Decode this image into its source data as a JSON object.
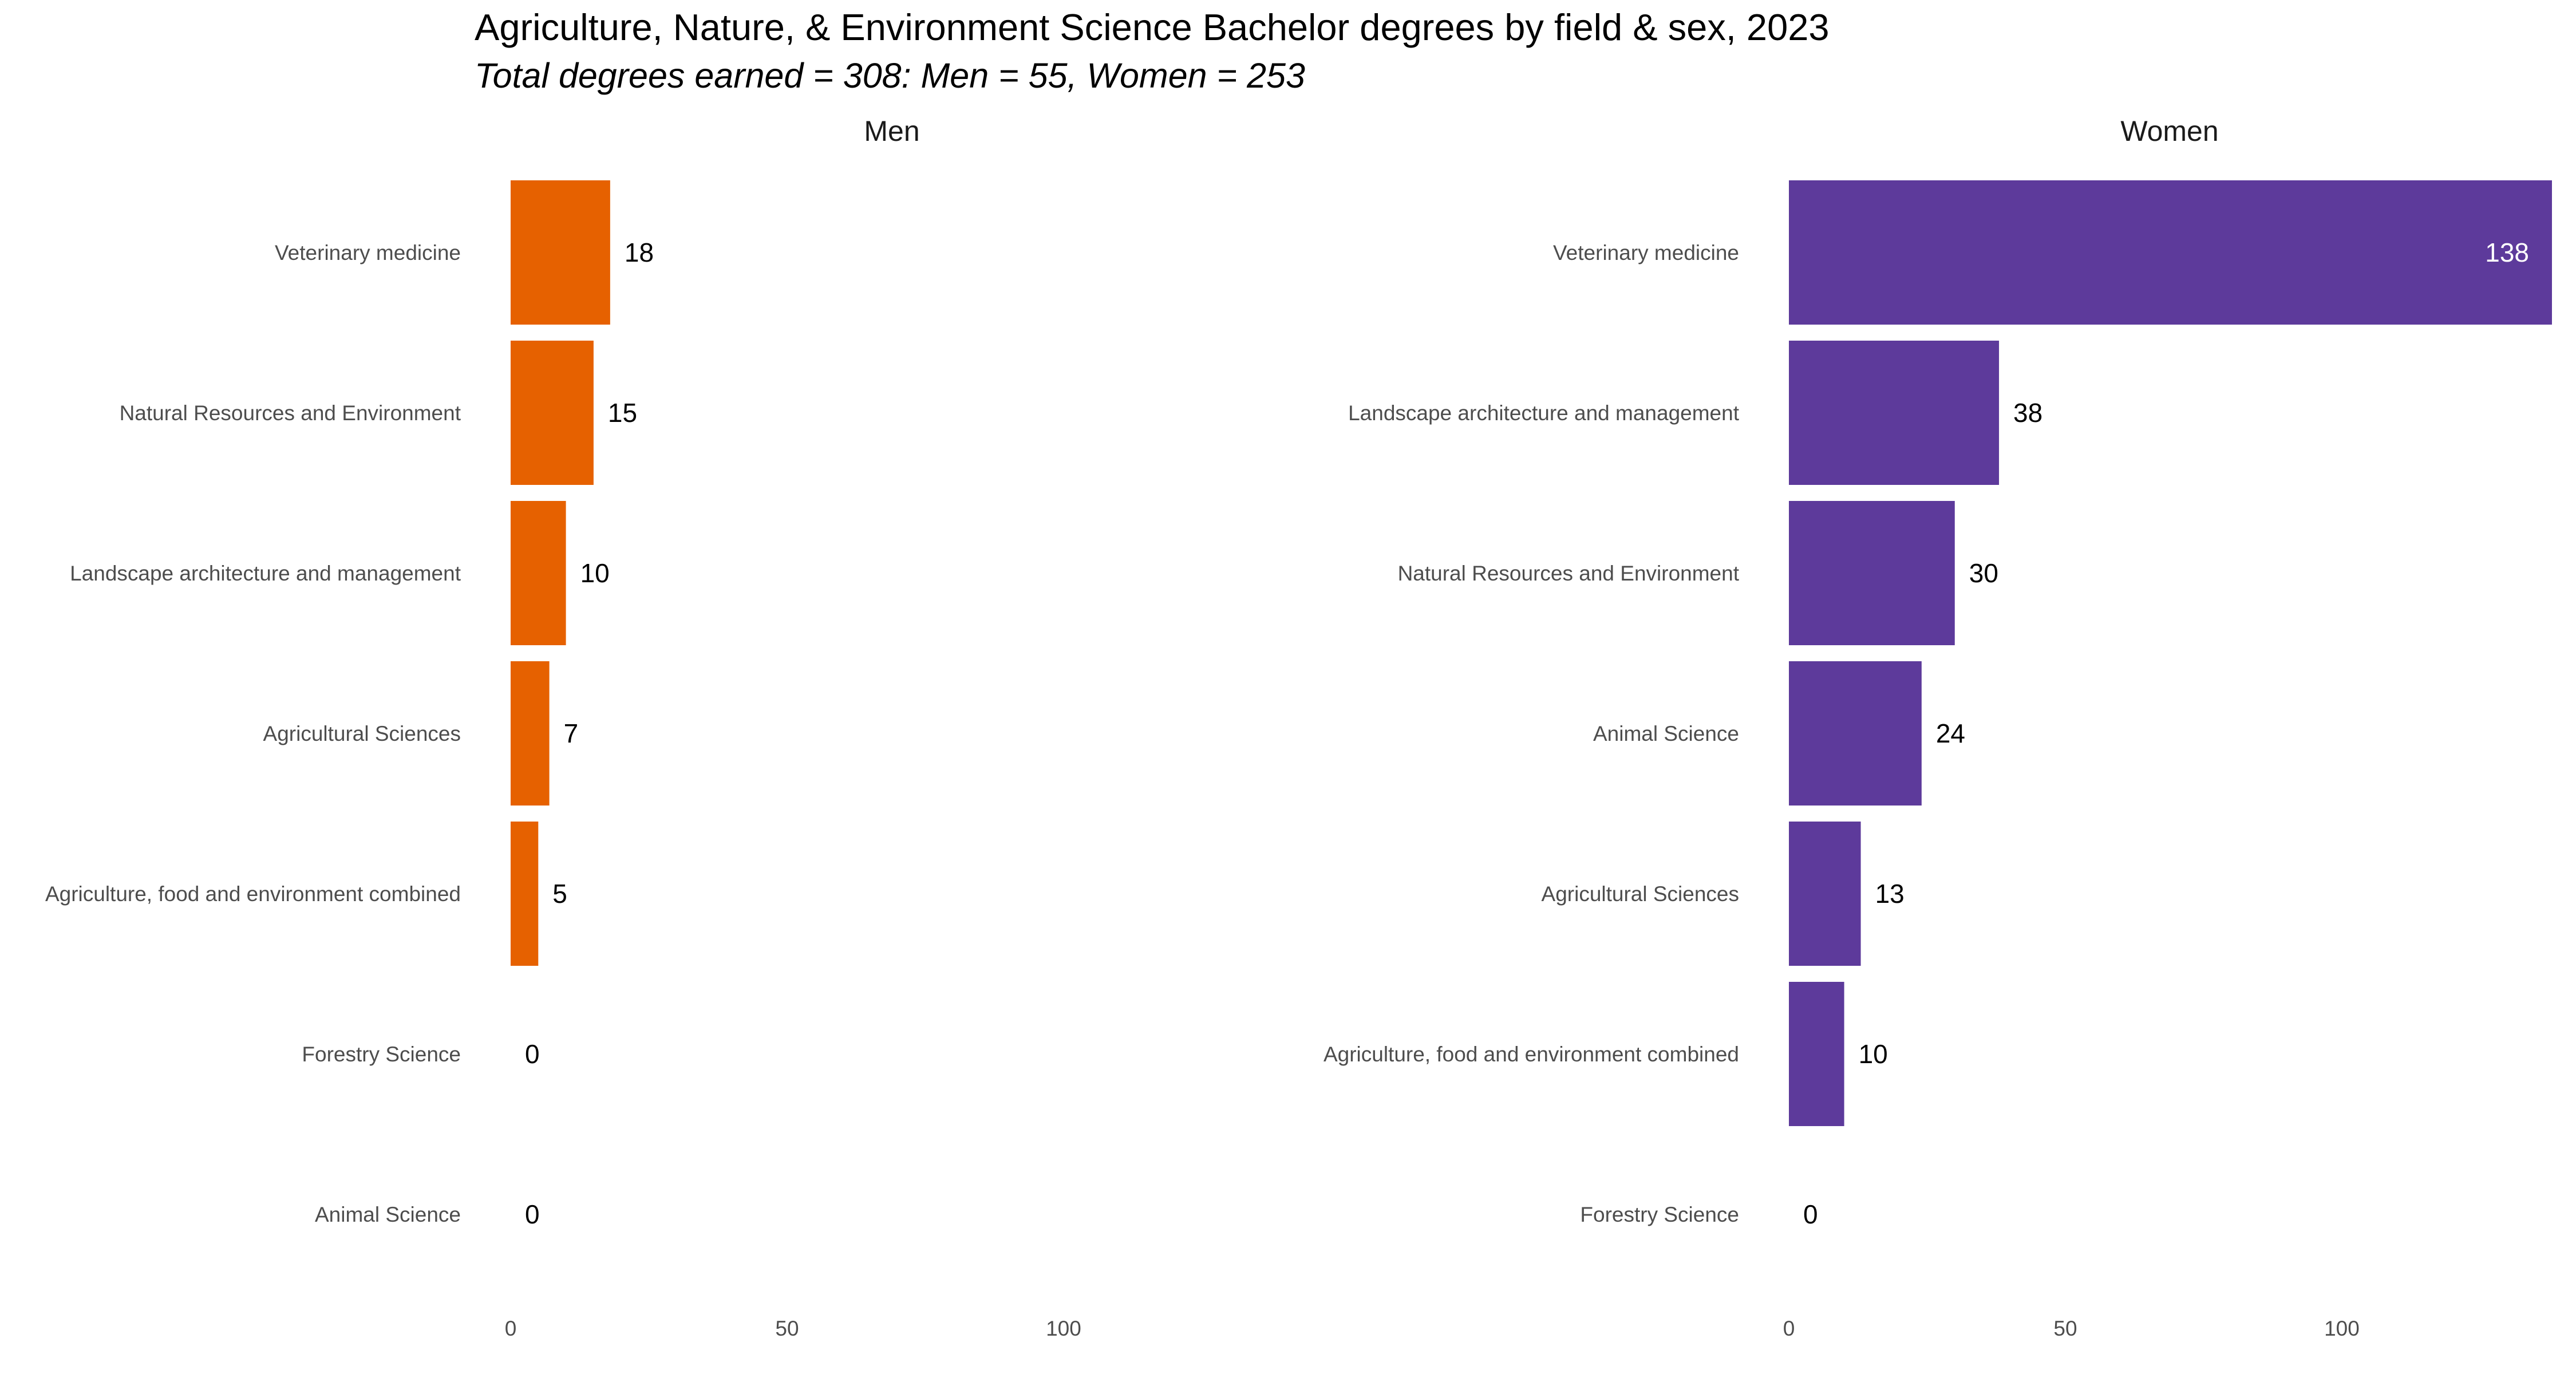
{
  "chart_data": {
    "type": "bar",
    "orientation": "horizontal",
    "title": "Agriculture, Nature, & Environment Science Bachelor degrees by field & sex, 2023",
    "subtitle": "Total degrees earned = 308: Men = 55, Women = 253",
    "grid": false,
    "legend": "none",
    "xlim": [
      0,
      138
    ],
    "x_ticks": [
      0,
      50,
      100
    ],
    "panels": [
      {
        "name": "Men",
        "color": "#E66100",
        "categories": [
          "Veterinary medicine",
          "Natural Resources and Environment",
          "Landscape architecture and management",
          "Agricultural Sciences",
          "Agriculture, food and environment combined",
          "Forestry Science",
          "Animal Science"
        ],
        "values": [
          18,
          15,
          10,
          7,
          5,
          0,
          0
        ]
      },
      {
        "name": "Women",
        "color": "#5D3A9B",
        "categories": [
          "Veterinary medicine",
          "Landscape architecture and management",
          "Natural Resources and Environment",
          "Animal Science",
          "Agricultural Sciences",
          "Agriculture, food and environment combined",
          "Forestry Science"
        ],
        "values": [
          138,
          38,
          30,
          24,
          13,
          10,
          0
        ]
      }
    ]
  }
}
